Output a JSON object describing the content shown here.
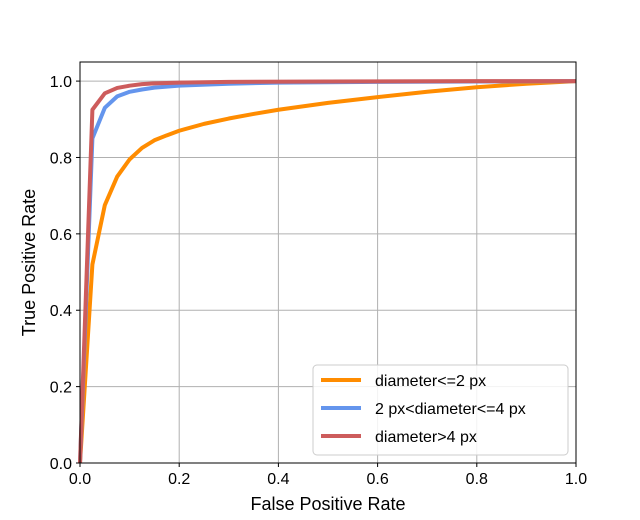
{
  "chart_data": {
    "type": "line",
    "title": "",
    "xlabel": "False Positive Rate",
    "ylabel": "True Positive Rate",
    "xlim": [
      0.0,
      1.0
    ],
    "ylim": [
      0.0,
      1.05
    ],
    "xticks": [
      "0.0",
      "0.2",
      "0.4",
      "0.6",
      "0.8",
      "1.0"
    ],
    "yticks": [
      "0.0",
      "0.2",
      "0.4",
      "0.6",
      "0.8",
      "1.0"
    ],
    "grid": true,
    "legend_position": "lower-right",
    "series": [
      {
        "name": "diameter<=2 px",
        "color": "#ff8c00",
        "x": [
          0.0,
          0.025,
          0.05,
          0.075,
          0.1,
          0.125,
          0.15,
          0.175,
          0.2,
          0.25,
          0.3,
          0.35,
          0.4,
          0.5,
          0.6,
          0.7,
          0.8,
          0.9,
          1.0
        ],
        "y": [
          0.0,
          0.52,
          0.675,
          0.75,
          0.795,
          0.825,
          0.845,
          0.858,
          0.87,
          0.888,
          0.902,
          0.914,
          0.925,
          0.943,
          0.958,
          0.972,
          0.984,
          0.993,
          1.0
        ]
      },
      {
        "name": "2 px<diameter<=4 px",
        "color": "#6495ed",
        "x": [
          0.0,
          0.025,
          0.05,
          0.075,
          0.1,
          0.125,
          0.15,
          0.2,
          0.3,
          0.4,
          0.6,
          0.8,
          1.0
        ],
        "y": [
          0.0,
          0.85,
          0.93,
          0.96,
          0.972,
          0.978,
          0.983,
          0.988,
          0.993,
          0.996,
          0.998,
          0.999,
          1.0
        ]
      },
      {
        "name": "diameter>4 px",
        "color": "#cd5c5c",
        "x": [
          0.0,
          0.025,
          0.05,
          0.075,
          0.1,
          0.125,
          0.15,
          0.2,
          0.3,
          0.5,
          0.8,
          1.0
        ],
        "y": [
          0.0,
          0.925,
          0.968,
          0.982,
          0.988,
          0.992,
          0.994,
          0.996,
          0.998,
          0.999,
          1.0,
          1.0
        ]
      }
    ]
  }
}
